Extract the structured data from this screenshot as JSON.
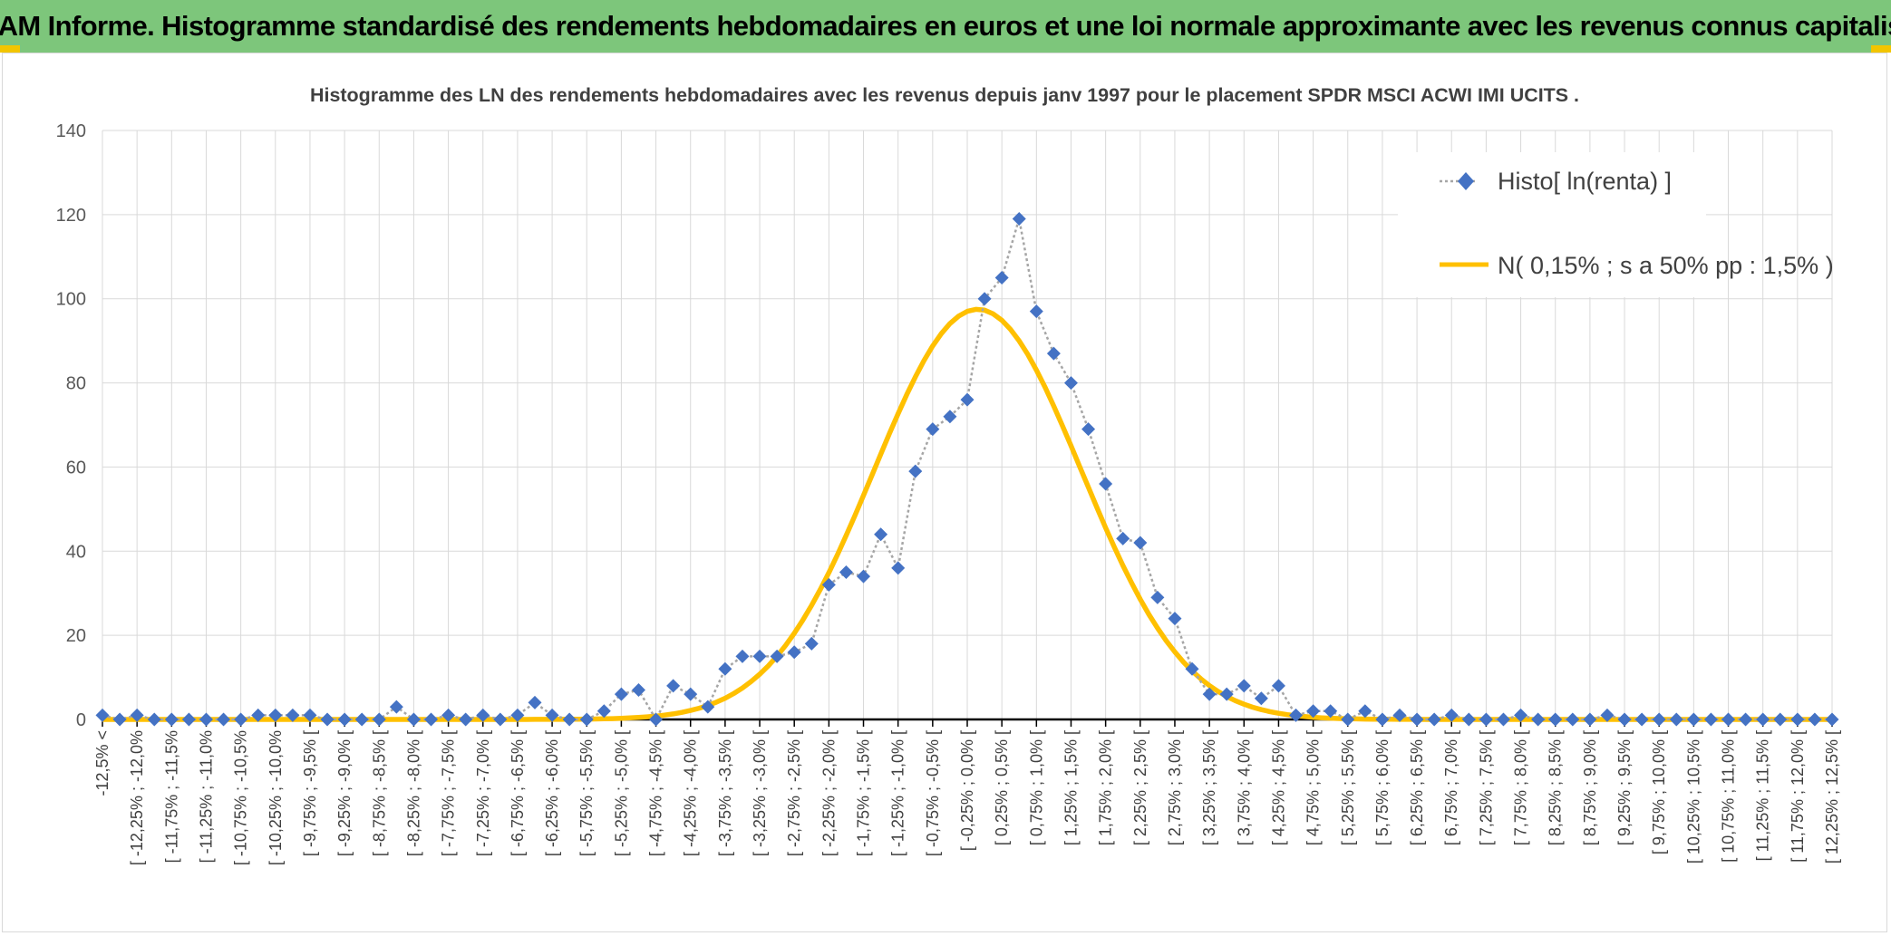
{
  "banner": {
    "title": "ADAM Informe. Histogramme standardisé des rendements hebdomadaires en euros et une loi normale approximante avec les revenus connus capitalisés"
  },
  "colors": {
    "banner_bg": "#7dc67b",
    "accent": "#f2c500",
    "histo_marker": "#4472c4",
    "histo_line": "#a6a6a6",
    "normal_line": "#ffc000"
  },
  "chart_data": {
    "type": "line",
    "title": "Histogramme des LN des rendements hebdomadaires avec les revenus depuis janv 1997 pour le placement SPDR MSCI ACWI IMI UCITS .",
    "xlabel": "",
    "ylabel": "",
    "ylim": [
      0,
      140
    ],
    "yticks": [
      0,
      20,
      40,
      60,
      80,
      100,
      120,
      140
    ],
    "grid": true,
    "legend_position": "top-right",
    "categories": [
      "-12,5% <",
      "[ -12,25% ; -12,0%",
      "[ -11,75% ; -11,5%",
      "[ -11,25% ; -11,0%",
      "[ -10,75% ; -10,5%",
      "[ -10,25% ; -10,0%",
      "[ -9,75% ; -9,5% [",
      "[ -9,25% ; -9,0% [",
      "[ -8,75% ; -8,5% [",
      "[ -8,25% ; -8,0% [",
      "[ -7,75% ; -7,5% [",
      "[ -7,25% ; -7,0% [",
      "[ -6,75% ; -6,5% [",
      "[ -6,25% ; -6,0% [",
      "[ -5,75% ; -5,5% [",
      "[ -5,25% ; -5,0% [",
      "[ -4,75% ; -4,5% [",
      "[ -4,25% ; -4,0% [",
      "[ -3,75% ; -3,5% [",
      "[ -3,25% ; -3,0% [",
      "[ -2,75% ; -2,5% [",
      "[ -2,25% ; -2,0% [",
      "[ -1,75% ; -1,5% [",
      "[ -1,25% ; -1,0% [",
      "[ -0,75% ; -0,5% [",
      "[ -0,25% ; 0,0% [",
      "[ 0,25% ; 0,5% [",
      "[ 0,75% ; 1,0% [",
      "[ 1,25% ; 1,5% [",
      "[ 1,75% ; 2,0% [",
      "[ 2,25% ; 2,5% [",
      "[ 2,75% ; 3,0% [",
      "[ 3,25% ; 3,5% [",
      "[ 3,75% ; 4,0% [",
      "[ 4,25% ; 4,5% [",
      "[ 4,75% ; 5,0% [",
      "[ 5,25% ; 5,5% [",
      "[ 5,75% ; 6,0% [",
      "[ 6,25% ; 6,5% [",
      "[ 6,75% ; 7,0% [",
      "[ 7,25% ; 7,5% [",
      "[ 7,75% ; 8,0% [",
      "[ 8,25% ; 8,5% [",
      "[ 8,75% ; 9,0% [",
      "[ 9,25% ; 9,5% [",
      "[ 9,75% ; 10,0% [",
      "[ 10,25% ; 10,5% [",
      "[ 10,75% ; 11,0% [",
      "[ 11,25% ; 11,5% [",
      "[ 11,75% ; 12,0% [",
      "[ 12,25% ; 12,5% ["
    ],
    "x": [
      -12.5,
      -12.25,
      -12.0,
      -11.75,
      -11.5,
      -11.25,
      -11.0,
      -10.75,
      -10.5,
      -10.25,
      -10.0,
      -9.75,
      -9.5,
      -9.25,
      -9.0,
      -8.75,
      -8.5,
      -8.25,
      -8.0,
      -7.75,
      -7.5,
      -7.25,
      -7.0,
      -6.75,
      -6.5,
      -6.25,
      -6.0,
      -5.75,
      -5.5,
      -5.25,
      -5.0,
      -4.75,
      -4.5,
      -4.25,
      -4.0,
      -3.75,
      -3.5,
      -3.25,
      -3.0,
      -2.75,
      -2.5,
      -2.25,
      -2.0,
      -1.75,
      -1.5,
      -1.25,
      -1.0,
      -0.75,
      -0.5,
      -0.25,
      0.0,
      0.25,
      0.5,
      0.75,
      1.0,
      1.25,
      1.5,
      1.75,
      2.0,
      2.25,
      2.5,
      2.75,
      3.0,
      3.25,
      3.5,
      3.75,
      4.0,
      4.25,
      4.5,
      4.75,
      5.0,
      5.25,
      5.5,
      5.75,
      6.0,
      6.25,
      6.5,
      6.75,
      7.0,
      7.25,
      7.5,
      7.75,
      8.0,
      8.25,
      8.5,
      8.75,
      9.0,
      9.25,
      9.5,
      9.75,
      10.0,
      10.25,
      10.5,
      10.75,
      11.0,
      11.25,
      11.5,
      11.75,
      12.0,
      12.25,
      12.5
    ],
    "series": [
      {
        "name": "Histo[ ln(renta) ]",
        "values": [
          1,
          0,
          1,
          0,
          0,
          0,
          0,
          0,
          0,
          1,
          1,
          1,
          1,
          0,
          0,
          0,
          0,
          3,
          0,
          0,
          1,
          0,
          1,
          0,
          1,
          4,
          1,
          0,
          0,
          2,
          6,
          7,
          0,
          8,
          6,
          3,
          12,
          15,
          15,
          15,
          16,
          18,
          32,
          35,
          34,
          44,
          36,
          59,
          69,
          72,
          76,
          100,
          105,
          119,
          97,
          87,
          80,
          69,
          56,
          43,
          42,
          29,
          24,
          12,
          6,
          6,
          8,
          5,
          8,
          1,
          2,
          2,
          0,
          2,
          0,
          1,
          0,
          0,
          1,
          0,
          0,
          0,
          1,
          0,
          0,
          0,
          0,
          1,
          0,
          0,
          0,
          0,
          0,
          0,
          0,
          0,
          0,
          0,
          0,
          0,
          0
        ]
      },
      {
        "name": "N( 0,15% ; s a 50% pp : 1,5% )",
        "mean": 0.15,
        "sd": 1.5,
        "peak": 97.5
      }
    ]
  }
}
